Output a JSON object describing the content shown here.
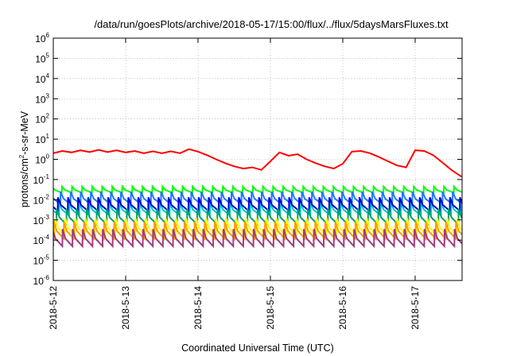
{
  "chart_data": {
    "type": "line",
    "title": "/data/run/goesPlots/archive/2018-05-17/15:00/flux/../flux/5daysMarsFluxes.txt",
    "xlabel": "Coordinated Universal Time (UTC)",
    "ylabel": "protons/cm²-s-sr-MeV",
    "ylabel_parts": [
      "protons/cm",
      "2",
      "-s-sr-MeV"
    ],
    "y_scale": "log",
    "ylim": [
      1e-06,
      1000000.0
    ],
    "y_ticks": [
      {
        "value": 1e-06,
        "base": "10",
        "exp": "-6"
      },
      {
        "value": 1e-05,
        "base": "10",
        "exp": "-5"
      },
      {
        "value": 0.0001,
        "base": "10",
        "exp": "-4"
      },
      {
        "value": 0.001,
        "base": "10",
        "exp": "-3"
      },
      {
        "value": 0.01,
        "base": "10",
        "exp": "-2"
      },
      {
        "value": 0.1,
        "base": "10",
        "exp": "-1"
      },
      {
        "value": 1.0,
        "base": "10",
        "exp": "0"
      },
      {
        "value": 10.0,
        "base": "10",
        "exp": "1"
      },
      {
        "value": 100.0,
        "base": "10",
        "exp": "2"
      },
      {
        "value": 1000.0,
        "base": "10",
        "exp": "3"
      },
      {
        "value": 10000.0,
        "base": "10",
        "exp": "4"
      },
      {
        "value": 100000.0,
        "base": "10",
        "exp": "5"
      },
      {
        "value": 1000000.0,
        "base": "10",
        "exp": "6"
      }
    ],
    "xlim": [
      "2018-05-12",
      "2018-05-17T18:00"
    ],
    "x_ticks": [
      "2018-5-12",
      "2018-5-13",
      "2018-5-14",
      "2018-5-15",
      "2018-5-16",
      "2018-5-17"
    ],
    "grid": true,
    "series": [
      {
        "color": "#ff0000",
        "points": [
          [
            "2018-05-12T00:00",
            2.0
          ],
          [
            "2018-05-12T03:00",
            2.6
          ],
          [
            "2018-05-12T06:00",
            2.2
          ],
          [
            "2018-05-12T09:00",
            2.8
          ],
          [
            "2018-05-12T12:00",
            2.3
          ],
          [
            "2018-05-12T15:00",
            2.9
          ],
          [
            "2018-05-12T18:00",
            2.3
          ],
          [
            "2018-05-12T21:00",
            2.8
          ],
          [
            "2018-05-13T00:00",
            2.2
          ],
          [
            "2018-05-13T03:00",
            2.6
          ],
          [
            "2018-05-13T06:00",
            2.0
          ],
          [
            "2018-05-13T09:00",
            2.5
          ],
          [
            "2018-05-13T12:00",
            2.0
          ],
          [
            "2018-05-13T15:00",
            2.5
          ],
          [
            "2018-05-13T18:00",
            2.0
          ],
          [
            "2018-05-13T21:00",
            3.2
          ],
          [
            "2018-05-14T00:00",
            2.4
          ],
          [
            "2018-05-14T03:00",
            1.6
          ],
          [
            "2018-05-14T06:00",
            1.0
          ],
          [
            "2018-05-14T09:00",
            0.65
          ],
          [
            "2018-05-14T12:00",
            0.45
          ],
          [
            "2018-05-14T15:00",
            0.35
          ],
          [
            "2018-05-14T18:00",
            0.4
          ],
          [
            "2018-05-14T21:00",
            0.3
          ],
          [
            "2018-05-15T00:00",
            0.8
          ],
          [
            "2018-05-15T03:00",
            2.2
          ],
          [
            "2018-05-15T06:00",
            1.5
          ],
          [
            "2018-05-15T09:00",
            1.8
          ],
          [
            "2018-05-15T12:00",
            1.0
          ],
          [
            "2018-05-15T15:00",
            0.65
          ],
          [
            "2018-05-15T18:00",
            0.45
          ],
          [
            "2018-05-15T21:00",
            0.35
          ],
          [
            "2018-05-16T00:00",
            0.6
          ],
          [
            "2018-05-16T03:00",
            2.4
          ],
          [
            "2018-05-16T06:00",
            2.6
          ],
          [
            "2018-05-16T09:00",
            2.0
          ],
          [
            "2018-05-16T12:00",
            1.3
          ],
          [
            "2018-05-16T15:00",
            0.8
          ],
          [
            "2018-05-16T18:00",
            0.5
          ],
          [
            "2018-05-16T21:00",
            0.4
          ],
          [
            "2018-05-17T00:00",
            2.8
          ],
          [
            "2018-05-17T03:00",
            2.6
          ],
          [
            "2018-05-17T06:00",
            1.6
          ],
          [
            "2018-05-17T09:00",
            0.7
          ],
          [
            "2018-05-17T12:00",
            0.3
          ],
          [
            "2018-05-17T15:00",
            0.15
          ],
          [
            "2018-05-17T16:30",
            0.12
          ],
          [
            "2018-05-17T18:00",
            0.3
          ]
        ]
      },
      {
        "color": "#00ff00",
        "sawtooth": {
          "peak": 0.045,
          "trough": 0.022
        }
      },
      {
        "color": "#1e78ff",
        "sawtooth": {
          "peak": 0.025,
          "trough": 0.006
        }
      },
      {
        "color": "#00c8c8",
        "sawtooth": {
          "peak": 0.007,
          "trough": 0.0017
        }
      },
      {
        "color": "#0000d8",
        "sawtooth": {
          "peak": 0.013,
          "trough": 0.0028
        }
      },
      {
        "color": "#00a06e",
        "sawtooth": {
          "peak": 0.0035,
          "trough": 0.0006
        }
      },
      {
        "color": "#ffff00",
        "sawtooth": {
          "peak": 0.0012,
          "trough": 0.00017
        }
      },
      {
        "color": "#ff9a00",
        "sawtooth": {
          "peak": 0.0008,
          "trough": 0.00012
        }
      },
      {
        "color": "#a03c82",
        "sawtooth": {
          "peak": 0.00035,
          "trough": 5e-05
        }
      }
    ]
  }
}
